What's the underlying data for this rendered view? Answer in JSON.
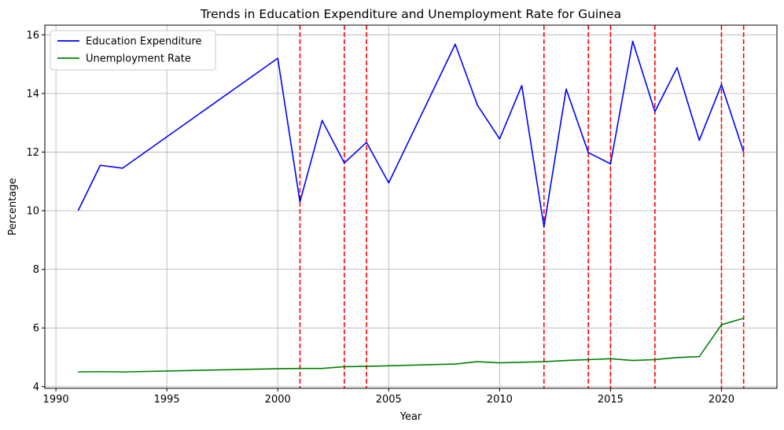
{
  "chart_data": {
    "type": "line",
    "title": "Trends in Education Expenditure and Unemployment Rate for Guinea",
    "xlabel": "Year",
    "ylabel": "Percentage",
    "xlim": [
      1989.5,
      2022.5
    ],
    "ylim": [
      3.94,
      16.33
    ],
    "xticks": [
      1990,
      1995,
      2000,
      2005,
      2010,
      2015,
      2020
    ],
    "yticks": [
      4,
      6,
      8,
      10,
      12,
      14,
      16
    ],
    "grid": true,
    "legend_position": "top-left",
    "series": [
      {
        "name": "Education Expenditure",
        "color": "#0000ff",
        "x": [
          1991,
          1992,
          1993,
          2000,
          2001,
          2002,
          2003,
          2004,
          2005,
          2008,
          2009,
          2010,
          2011,
          2012,
          2013,
          2014,
          2015,
          2016,
          2017,
          2018,
          2019,
          2020,
          2021
        ],
        "values": [
          10.0,
          11.55,
          11.45,
          15.2,
          10.3,
          13.08,
          11.63,
          12.33,
          10.95,
          15.68,
          13.6,
          12.45,
          14.27,
          9.45,
          14.15,
          11.98,
          11.6,
          15.78,
          13.38,
          14.88,
          12.4,
          14.3,
          12.0
        ]
      },
      {
        "name": "Unemployment Rate",
        "color": "#008000",
        "x": [
          1991,
          1992,
          1993,
          2000,
          2001,
          2002,
          2003,
          2004,
          2005,
          2008,
          2009,
          2010,
          2011,
          2012,
          2013,
          2014,
          2015,
          2016,
          2017,
          2018,
          2019,
          2020,
          2021
        ],
        "values": [
          4.5,
          4.51,
          4.5,
          4.61,
          4.62,
          4.62,
          4.68,
          4.69,
          4.71,
          4.77,
          4.85,
          4.81,
          4.83,
          4.85,
          4.89,
          4.92,
          4.95,
          4.89,
          4.92,
          4.99,
          5.02,
          6.11,
          6.33
        ]
      }
    ],
    "vlines": {
      "color": "#ff0000",
      "style": "dashed",
      "x": [
        2001,
        2003,
        2004,
        2012,
        2014,
        2015,
        2017,
        2020,
        2021
      ]
    }
  }
}
